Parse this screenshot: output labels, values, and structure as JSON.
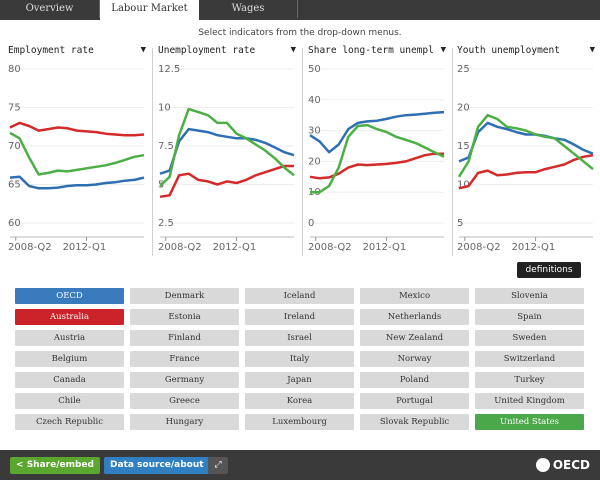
{
  "tabs": [
    {
      "label": "Overview",
      "active": false
    },
    {
      "label": "Labour Market",
      "active": true
    },
    {
      "label": "Wages",
      "active": false
    }
  ],
  "instructions": "Select indicators from the drop-down menus.",
  "colors": {
    "oecd": "#2e6fb3",
    "australia": "#d42a2a",
    "united_states": "#4caf45"
  },
  "chart_data": [
    {
      "type": "line",
      "indicator": "Employment rate",
      "ylim": [
        60,
        80
      ],
      "yticks": [
        "80",
        "75",
        "70",
        "65",
        "60"
      ],
      "xtick_labels": [
        "2008-Q2",
        "2012-Q1"
      ],
      "x": [
        2008.0,
        2008.5,
        2009.0,
        2009.5,
        2010.0,
        2010.5,
        2011.0,
        2011.5,
        2012.0,
        2012.5,
        2013.0,
        2013.5,
        2014.0,
        2014.5,
        2015.0
      ],
      "series": [
        {
          "name": "OECD",
          "color": "#2e6fb3",
          "values": [
            65.9,
            66.0,
            64.8,
            64.5,
            64.5,
            64.6,
            64.8,
            64.9,
            64.9,
            65.0,
            65.2,
            65.3,
            65.5,
            65.6,
            65.9
          ]
        },
        {
          "name": "Australia",
          "color": "#d42a2a",
          "values": [
            72.4,
            73.0,
            72.6,
            72.0,
            72.2,
            72.4,
            72.3,
            72.0,
            71.9,
            71.8,
            71.6,
            71.5,
            71.4,
            71.4,
            71.5
          ]
        },
        {
          "name": "United States",
          "color": "#4caf45",
          "values": [
            71.7,
            71.0,
            68.5,
            66.3,
            66.5,
            66.8,
            66.7,
            66.9,
            67.1,
            67.3,
            67.5,
            67.8,
            68.2,
            68.6,
            68.8
          ]
        }
      ]
    },
    {
      "type": "line",
      "indicator": "Unemployment rate",
      "ylim": [
        2.5,
        12.5
      ],
      "yticks": [
        "12.5",
        "10",
        "7.5",
        "5",
        "2.5"
      ],
      "xtick_labels": [
        "2008-Q2",
        "2012-Q1"
      ],
      "x": [
        2008.0,
        2008.5,
        2009.0,
        2009.5,
        2010.0,
        2010.5,
        2011.0,
        2011.5,
        2012.0,
        2012.5,
        2013.0,
        2013.5,
        2014.0,
        2014.5,
        2015.0
      ],
      "series": [
        {
          "name": "OECD",
          "color": "#2e6fb3",
          "values": [
            5.7,
            5.9,
            7.8,
            8.6,
            8.5,
            8.4,
            8.2,
            8.1,
            8.0,
            8.0,
            7.9,
            7.7,
            7.4,
            7.1,
            6.9
          ]
        },
        {
          "name": "Australia",
          "color": "#d42a2a",
          "values": [
            4.2,
            4.3,
            5.6,
            5.7,
            5.3,
            5.2,
            5.0,
            5.2,
            5.1,
            5.3,
            5.6,
            5.8,
            6.0,
            6.2,
            6.2
          ]
        },
        {
          "name": "United States",
          "color": "#4caf45",
          "values": [
            4.9,
            5.5,
            8.2,
            9.9,
            9.7,
            9.5,
            9.0,
            9.0,
            8.3,
            8.0,
            7.6,
            7.2,
            6.7,
            6.1,
            5.6
          ]
        }
      ]
    },
    {
      "type": "line",
      "indicator": "Share long-term unempl",
      "ylim": [
        0,
        50
      ],
      "yticks": [
        "50",
        "40",
        "30",
        "20",
        "10",
        "0"
      ],
      "xtick_labels": [
        "2008-Q2",
        "2012-Q1"
      ],
      "x": [
        2008.0,
        2008.5,
        2009.0,
        2009.5,
        2010.0,
        2010.5,
        2011.0,
        2011.5,
        2012.0,
        2012.5,
        2013.0,
        2013.5,
        2014.0,
        2014.5,
        2015.0
      ],
      "series": [
        {
          "name": "OECD",
          "color": "#2e6fb3",
          "values": [
            28.5,
            26.5,
            23.0,
            25.5,
            30.5,
            32.5,
            33.0,
            33.2,
            33.8,
            34.5,
            35.0,
            35.2,
            35.5,
            35.8,
            36.0
          ]
        },
        {
          "name": "Australia",
          "color": "#d42a2a",
          "values": [
            15.0,
            14.5,
            14.8,
            16.0,
            18.0,
            19.0,
            18.8,
            19.0,
            19.2,
            19.5,
            20.0,
            21.0,
            22.0,
            22.5,
            22.5
          ]
        },
        {
          "name": "United States",
          "color": "#4caf45",
          "values": [
            10.0,
            10.0,
            12.0,
            18.0,
            28.0,
            31.5,
            31.8,
            30.5,
            29.5,
            28.0,
            27.0,
            26.0,
            24.5,
            23.0,
            21.5
          ]
        }
      ]
    },
    {
      "type": "line",
      "indicator": "Youth unemployment",
      "ylim": [
        5,
        25
      ],
      "yticks": [
        "25",
        "20",
        "15",
        "10",
        "5"
      ],
      "xtick_labels": [
        "2008-Q2",
        "2012-Q1"
      ],
      "x": [
        2008.0,
        2008.5,
        2009.0,
        2009.5,
        2010.0,
        2010.5,
        2011.0,
        2011.5,
        2012.0,
        2012.5,
        2013.0,
        2013.5,
        2014.0,
        2014.5,
        2015.0
      ],
      "series": [
        {
          "name": "OECD",
          "color": "#2e6fb3",
          "values": [
            13.0,
            13.5,
            16.8,
            18.0,
            17.5,
            17.2,
            16.8,
            16.5,
            16.5,
            16.3,
            16.0,
            15.8,
            15.2,
            14.5,
            14.0
          ]
        },
        {
          "name": "Australia",
          "color": "#d42a2a",
          "values": [
            9.5,
            9.8,
            11.5,
            11.8,
            11.2,
            11.3,
            11.5,
            11.6,
            11.6,
            12.0,
            12.3,
            12.6,
            13.2,
            13.6,
            13.8
          ]
        },
        {
          "name": "United States",
          "color": "#4caf45",
          "values": [
            11.0,
            13.0,
            17.5,
            19.0,
            18.5,
            17.5,
            17.3,
            17.0,
            16.5,
            16.2,
            16.0,
            15.0,
            14.0,
            13.0,
            12.0
          ]
        }
      ]
    }
  ],
  "definitions_label": "definitions",
  "countries": [
    {
      "label": "OECD",
      "state": "oecd"
    },
    {
      "label": "Denmark",
      "state": ""
    },
    {
      "label": "Iceland",
      "state": ""
    },
    {
      "label": "Mexico",
      "state": ""
    },
    {
      "label": "Slovenia",
      "state": ""
    },
    {
      "label": "Australia",
      "state": "aus"
    },
    {
      "label": "Estonia",
      "state": ""
    },
    {
      "label": "Ireland",
      "state": ""
    },
    {
      "label": "Netherlands",
      "state": ""
    },
    {
      "label": "Spain",
      "state": ""
    },
    {
      "label": "Austria",
      "state": ""
    },
    {
      "label": "Finland",
      "state": ""
    },
    {
      "label": "Israel",
      "state": ""
    },
    {
      "label": "New Zealand",
      "state": ""
    },
    {
      "label": "Sweden",
      "state": ""
    },
    {
      "label": "Belgium",
      "state": ""
    },
    {
      "label": "France",
      "state": ""
    },
    {
      "label": "Italy",
      "state": ""
    },
    {
      "label": "Norway",
      "state": ""
    },
    {
      "label": "Switzerland",
      "state": ""
    },
    {
      "label": "Canada",
      "state": ""
    },
    {
      "label": "Germany",
      "state": ""
    },
    {
      "label": "Japan",
      "state": ""
    },
    {
      "label": "Poland",
      "state": ""
    },
    {
      "label": "Turkey",
      "state": ""
    },
    {
      "label": "Chile",
      "state": ""
    },
    {
      "label": "Greece",
      "state": ""
    },
    {
      "label": "Korea",
      "state": ""
    },
    {
      "label": "Portugal",
      "state": ""
    },
    {
      "label": "United Kingdom",
      "state": ""
    },
    {
      "label": "Czech Republic",
      "state": ""
    },
    {
      "label": "Hungary",
      "state": ""
    },
    {
      "label": "Luxembourg",
      "state": ""
    },
    {
      "label": "Slovak Republic",
      "state": ""
    },
    {
      "label": "United States",
      "state": "us"
    }
  ],
  "footer": {
    "share_label": "Share/embed",
    "data_label": "Data source/about",
    "expand_icon": "expand-icon",
    "logo_text": "OECD"
  }
}
